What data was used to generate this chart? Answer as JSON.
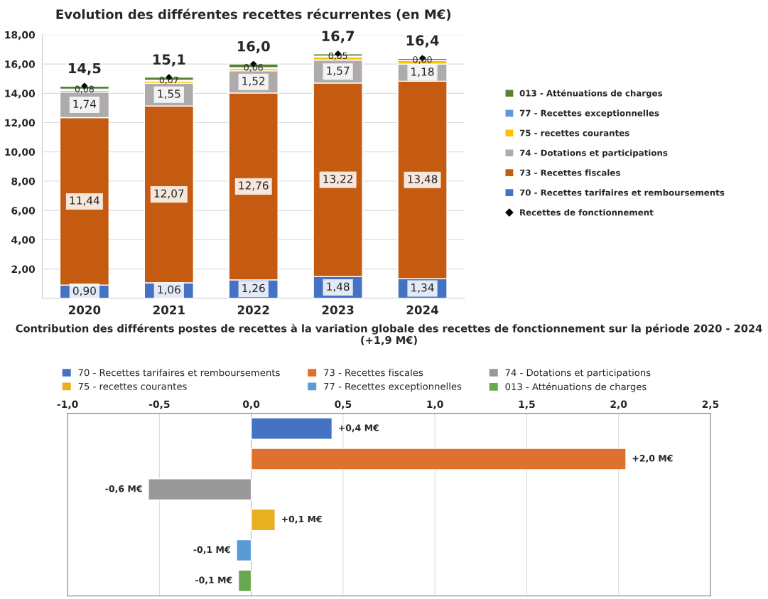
{
  "chart_data": [
    {
      "type": "bar",
      "stacked": true,
      "title": "Evolution des différentes recettes récurrentes (en M€)",
      "categories": [
        "2020",
        "2021",
        "2022",
        "2023",
        "2024"
      ],
      "ylim": [
        0,
        18
      ],
      "yticks": [
        {
          "value": 0,
          "label": null
        },
        {
          "value": 2,
          "label": "2,00"
        },
        {
          "value": 4,
          "label": "4,00"
        },
        {
          "value": 6,
          "label": "6,00"
        },
        {
          "value": 8,
          "label": "8,00"
        },
        {
          "value": 10,
          "label": "10,00"
        },
        {
          "value": 12,
          "label": "12,00"
        },
        {
          "value": 14,
          "label": "14,00"
        },
        {
          "value": 16,
          "label": "16,00"
        },
        {
          "value": 18,
          "label": "18,00"
        }
      ],
      "grid": "y",
      "legend": "right",
      "series": [
        {
          "name": "70 - Recettes tarifaires et remboursements",
          "color": "#4472c4",
          "values": [
            0.9,
            1.06,
            1.26,
            1.48,
            1.34
          ],
          "value_labels": [
            "0,90",
            "1,06",
            "1,26",
            "1,48",
            "1,34"
          ]
        },
        {
          "name": "73 - Recettes fiscales",
          "color": "#c55a11",
          "values": [
            11.44,
            12.07,
            12.76,
            13.22,
            13.48
          ],
          "value_labels": [
            "11,44",
            "12,07",
            "12,76",
            "13,22",
            "13,48"
          ]
        },
        {
          "name": "74 - Dotations et participations",
          "color": "#afabab",
          "values": [
            1.74,
            1.55,
            1.52,
            1.57,
            1.18
          ],
          "value_labels": [
            "1,74",
            "1,55",
            "1,52",
            "1,57",
            "1,18"
          ]
        },
        {
          "name": "75 - recettes courantes",
          "color": "#ffc000",
          "values": [
            0.12,
            0.14,
            0.15,
            0.22,
            0.25
          ]
        },
        {
          "name": "77 - Recettes exceptionnelles",
          "color": "#5b9bd5",
          "values": [
            0.08,
            0.07,
            0.06,
            0.05,
            0.0
          ],
          "value_labels": [
            "0,08",
            "0,07",
            "0,06",
            "0,05",
            "0,00"
          ]
        },
        {
          "name": "013 - Atténuations de charges",
          "color": "#548235",
          "values": [
            0.2,
            0.21,
            0.25,
            0.16,
            0.13
          ]
        },
        {
          "name": "Recettes de fonctionnement",
          "type": "scatter",
          "marker": "diamond",
          "color": "#000000",
          "values": [
            14.5,
            15.1,
            16.0,
            16.7,
            16.4
          ],
          "value_labels": [
            "14,5",
            "15,1",
            "16,0",
            "16,7",
            "16,4"
          ]
        }
      ]
    },
    {
      "type": "bar",
      "orientation": "horizontal",
      "title": "Contribution des différents postes de recettes à la variation globale des recettes de fonctionnement sur la période 2020 - 2024 (+1,9 M€)",
      "categories": [
        null,
        null,
        null,
        null,
        null,
        null
      ],
      "xlim": [
        -1,
        2.5
      ],
      "xticks": [
        {
          "value": -1,
          "label": "-1,0"
        },
        {
          "value": -0.5,
          "label": "-0,5"
        },
        {
          "value": 0,
          "label": "0,0"
        },
        {
          "value": 0.5,
          "label": "0,5"
        },
        {
          "value": 1,
          "label": "1,0"
        },
        {
          "value": 1.5,
          "label": "1,5"
        },
        {
          "value": 2,
          "label": "2,0"
        },
        {
          "value": 2.5,
          "label": "2,5"
        }
      ],
      "grid": "x",
      "legend": "top",
      "series": [
        {
          "name": "70 - Recettes tarifaires et remboursements",
          "color": "#4472c4",
          "values": [
            0.44,
            null,
            null,
            null,
            null,
            null
          ],
          "value_labels": [
            "+0,4 M€",
            null,
            null,
            null,
            null,
            null
          ]
        },
        {
          "name": "73 - Recettes fiscales",
          "color": "#e0702e",
          "values": [
            null,
            2.04,
            null,
            null,
            null,
            null
          ],
          "value_labels": [
            null,
            "+2,0 M€",
            null,
            null,
            null,
            null
          ]
        },
        {
          "name": "74 - Dotations et participations",
          "color": "#999999",
          "values": [
            null,
            null,
            -0.56,
            null,
            null,
            null
          ],
          "value_labels": [
            null,
            null,
            "-0,6 M€",
            null,
            null,
            null
          ]
        },
        {
          "name": "75 - recettes courantes",
          "color": "#e8b020",
          "values": [
            null,
            null,
            null,
            0.13,
            null,
            null
          ],
          "value_labels": [
            null,
            null,
            null,
            "+0,1 M€",
            null,
            null
          ]
        },
        {
          "name": "77 - Recettes exceptionnelles",
          "color": "#5b9bd5",
          "values": [
            null,
            null,
            null,
            null,
            -0.08,
            null
          ],
          "value_labels": [
            null,
            null,
            null,
            null,
            "-0,1 M€",
            null
          ]
        },
        {
          "name": "013 - Atténuations de charges",
          "color": "#6aa84f",
          "values": [
            null,
            null,
            null,
            null,
            null,
            -0.07
          ],
          "value_labels": [
            null,
            null,
            null,
            null,
            null,
            "-0,1 M€"
          ]
        }
      ]
    }
  ]
}
